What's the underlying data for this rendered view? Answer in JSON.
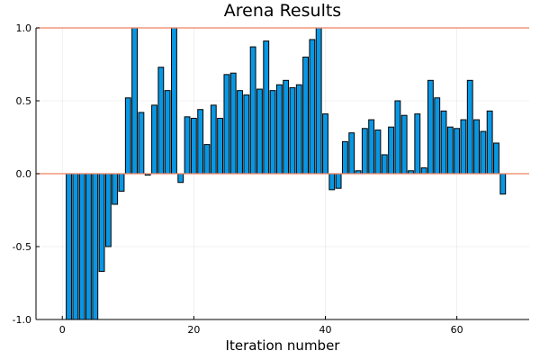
{
  "chart_data": {
    "type": "bar",
    "title": "Arena Results",
    "xlabel": "Iteration number",
    "ylabel": "",
    "xlim": [
      -4,
      71
    ],
    "ylim": [
      -1.0,
      1.0
    ],
    "xticks": [
      0,
      20,
      40,
      60
    ],
    "yticks": [
      -1.0,
      -0.5,
      0.0,
      0.5,
      1.0
    ],
    "ytick_labels": [
      "-1.0",
      "-0.5",
      "0.0",
      "0.5",
      "1.0"
    ],
    "grid": true,
    "legend": "none",
    "reference_lines": [
      0.0,
      1.0
    ],
    "bar_color": "#0997E3",
    "reference_line_color": "#F08262",
    "x": [
      1,
      2,
      3,
      4,
      5,
      6,
      7,
      8,
      9,
      10,
      11,
      12,
      13,
      14,
      15,
      16,
      17,
      18,
      19,
      20,
      21,
      22,
      23,
      24,
      25,
      26,
      27,
      28,
      29,
      30,
      31,
      32,
      33,
      34,
      35,
      36,
      37,
      38,
      39,
      40,
      41,
      42,
      43,
      44,
      45,
      46,
      47,
      48,
      49,
      50,
      51,
      52,
      53,
      54,
      55,
      56,
      57,
      58,
      59,
      60,
      61,
      62,
      63,
      64,
      65,
      66,
      67
    ],
    "values": [
      -1.0,
      -1.0,
      -1.0,
      -1.0,
      -1.0,
      -0.67,
      -0.5,
      -0.21,
      -0.12,
      0.52,
      1.0,
      0.42,
      -0.01,
      0.47,
      0.73,
      0.57,
      1.0,
      -0.06,
      0.39,
      0.38,
      0.44,
      0.2,
      0.47,
      0.38,
      0.68,
      0.69,
      0.57,
      0.54,
      0.87,
      0.58,
      0.91,
      0.57,
      0.61,
      0.64,
      0.59,
      0.61,
      0.8,
      0.92,
      1.0,
      0.41,
      -0.11,
      -0.1,
      0.22,
      0.28,
      0.02,
      0.31,
      0.37,
      0.3,
      0.13,
      0.32,
      0.5,
      0.4,
      0.02,
      0.41,
      0.04,
      0.64,
      0.52,
      0.43,
      0.32,
      0.31,
      0.37,
      0.64,
      0.37,
      0.29,
      0.43,
      0.21,
      -0.14
    ]
  }
}
